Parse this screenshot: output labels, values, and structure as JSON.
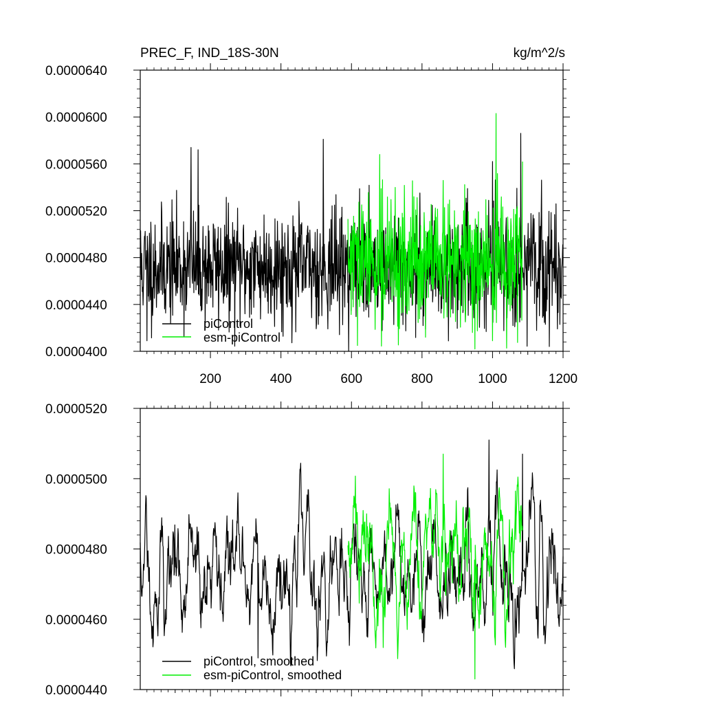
{
  "chart_data": [
    {
      "type": "line",
      "title": "PREC_F, IND_18S-30N",
      "units": "kg/m^2/s",
      "xlim": [
        1,
        1200
      ],
      "ylim": [
        4e-05,
        6.4e-05
      ],
      "x_ticks": [
        200,
        400,
        600,
        800,
        1000,
        1200
      ],
      "x_tick_labels": [
        "200",
        "400",
        "600",
        "800",
        "1000",
        "1200"
      ],
      "y_ticks": [
        4e-05,
        4.4e-05,
        4.8e-05,
        5.2e-05,
        5.6e-05,
        6e-05,
        6.4e-05
      ],
      "y_tick_labels": [
        "0.0000400",
        "0.0000440",
        "0.0000480",
        "0.0000520",
        "0.0000560",
        "0.0000600",
        "0.0000640"
      ],
      "legend_position": "bottom-left",
      "series": [
        {
          "name": "piControl",
          "color": "#000000",
          "x_range": [
            1,
            1200
          ],
          "mean": 4.72e-05,
          "sd": 2.4e-06,
          "seed": 11,
          "spikes": [
            {
              "x": 20,
              "y": 4.09e-05
            },
            {
              "x": 145,
              "y": 5.74e-05
            },
            {
              "x": 165,
              "y": 5.72e-05
            },
            {
              "x": 520,
              "y": 5.81e-05
            },
            {
              "x": 1000,
              "y": 5.62e-05
            },
            {
              "x": 1080,
              "y": 5.86e-05
            },
            {
              "x": 1150,
              "y": 4.23e-05
            }
          ]
        },
        {
          "name": "esm-piControl",
          "color": "#00ee00",
          "x_range": [
            590,
            1085
          ],
          "mean": 4.75e-05,
          "sd": 2.7e-06,
          "seed": 29,
          "spikes": [
            {
              "x": 680,
              "y": 5.68e-05
            },
            {
              "x": 810,
              "y": 4.12e-05
            },
            {
              "x": 950,
              "y": 4.02e-05
            },
            {
              "x": 1010,
              "y": 6.03e-05
            },
            {
              "x": 1000,
              "y": 4.09e-05
            }
          ]
        }
      ]
    },
    {
      "type": "line",
      "xlim": [
        1,
        1200
      ],
      "ylim": [
        4.4e-05,
        5.2e-05
      ],
      "x_ticks": [
        200,
        400,
        600,
        800,
        1000,
        1200
      ],
      "y_ticks": [
        4.4e-05,
        4.6e-05,
        4.8e-05,
        5e-05,
        5.2e-05
      ],
      "y_tick_labels": [
        "0.0000440",
        "0.0000460",
        "0.0000480",
        "0.0000500",
        "0.0000520"
      ],
      "legend_position": "bottom-left",
      "series": [
        {
          "name": "piControl, smoothed",
          "color": "#000000",
          "x_range": [
            1,
            1200
          ],
          "mean": 4.74e-05,
          "sd": 1.1e-06,
          "seed": 11,
          "spikes": [
            {
              "x": 335,
              "y": 4.49e-05
            },
            {
              "x": 990,
              "y": 5.11e-05
            },
            {
              "x": 1085,
              "y": 5.07e-05
            }
          ]
        },
        {
          "name": "esm-piControl, smoothed",
          "color": "#00ee00",
          "x_range": [
            590,
            1085
          ],
          "mean": 4.75e-05,
          "sd": 1.2e-06,
          "seed": 29,
          "spikes": [
            {
              "x": 950,
              "y": 4.43e-05
            },
            {
              "x": 860,
              "y": 5.07e-05
            }
          ]
        }
      ]
    }
  ]
}
